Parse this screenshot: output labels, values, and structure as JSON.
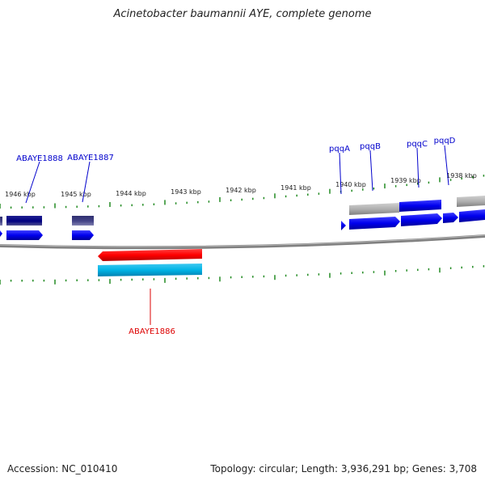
{
  "header": {
    "title": "Acinetobacter baumannii AYE, complete genome"
  },
  "footer": {
    "accession": "Accession: NC_010410",
    "summary": "Topology: circular; Length: 3,936,291 bp; Genes: 3,708"
  },
  "map": {
    "unit": "kbp",
    "ticks": [
      "1946 kbp",
      "1945 kbp",
      "1944 kbp",
      "1943 kbp",
      "1942 kbp",
      "1941 kbp",
      "1940 kbp",
      "1939 kbp",
      "1938 kbp"
    ],
    "gene_labels": [
      {
        "id": "g1888",
        "text": "ABAYE1888",
        "color": "#0000cc"
      },
      {
        "id": "g1887",
        "text": "ABAYE1887",
        "color": "#0000cc"
      },
      {
        "id": "pqqA",
        "text": "pqqA",
        "color": "#0000cc"
      },
      {
        "id": "pqqB",
        "text": "pqqB",
        "color": "#0000cc"
      },
      {
        "id": "pqqC",
        "text": "pqqC",
        "color": "#0000cc"
      },
      {
        "id": "pqqD",
        "text": "pqqD",
        "color": "#0000cc"
      },
      {
        "id": "g1886",
        "text": "ABAYE1886",
        "color": "#dd0000"
      }
    ],
    "colors": {
      "forward_gene": "#0000ee",
      "forward_cds": "#000080",
      "reverse_gene": "#ff0000",
      "reverse_cds": "#00b4e6",
      "backbone": "#808080",
      "tick": "#228b22"
    }
  }
}
